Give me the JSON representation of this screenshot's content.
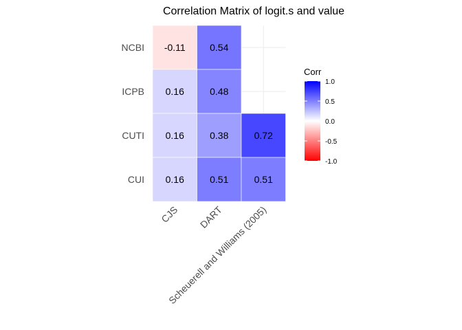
{
  "chart_data": {
    "type": "heatmap",
    "title": "Correlation Matrix of logit.s and value",
    "x_categories": [
      "CJS",
      "DART",
      "Scheuerell and Williams (2005)"
    ],
    "y_categories": [
      "CUI",
      "CUTI",
      "ICPB",
      "NCBI"
    ],
    "cells": [
      {
        "x": "CJS",
        "y": "NCBI",
        "value": -0.11,
        "label": "-0.11"
      },
      {
        "x": "DART",
        "y": "NCBI",
        "value": 0.54,
        "label": "0.54"
      },
      {
        "x": "CJS",
        "y": "ICPB",
        "value": 0.16,
        "label": "0.16"
      },
      {
        "x": "DART",
        "y": "ICPB",
        "value": 0.48,
        "label": "0.48"
      },
      {
        "x": "CJS",
        "y": "CUTI",
        "value": 0.16,
        "label": "0.16"
      },
      {
        "x": "DART",
        "y": "CUTI",
        "value": 0.38,
        "label": "0.38"
      },
      {
        "x": "Scheuerell and Williams (2005)",
        "y": "CUTI",
        "value": 0.72,
        "label": "0.72"
      },
      {
        "x": "CJS",
        "y": "CUI",
        "value": 0.16,
        "label": "0.16"
      },
      {
        "x": "DART",
        "y": "CUI",
        "value": 0.51,
        "label": "0.51"
      },
      {
        "x": "Scheuerell and Williams (2005)",
        "y": "CUI",
        "value": 0.51,
        "label": "0.51"
      }
    ],
    "color_scale": {
      "low": "#ff0000",
      "mid": "#ffffff",
      "high": "#0000ff",
      "limits": [
        -1,
        1
      ]
    },
    "legend": {
      "title": "Corr",
      "ticks": [
        1.0,
        0.5,
        0.0,
        -0.5,
        -1.0
      ],
      "tick_labels": [
        "1.0",
        "0.5",
        "0.0",
        "-0.5",
        "-1.0"
      ],
      "position": "right"
    },
    "grid": true
  }
}
